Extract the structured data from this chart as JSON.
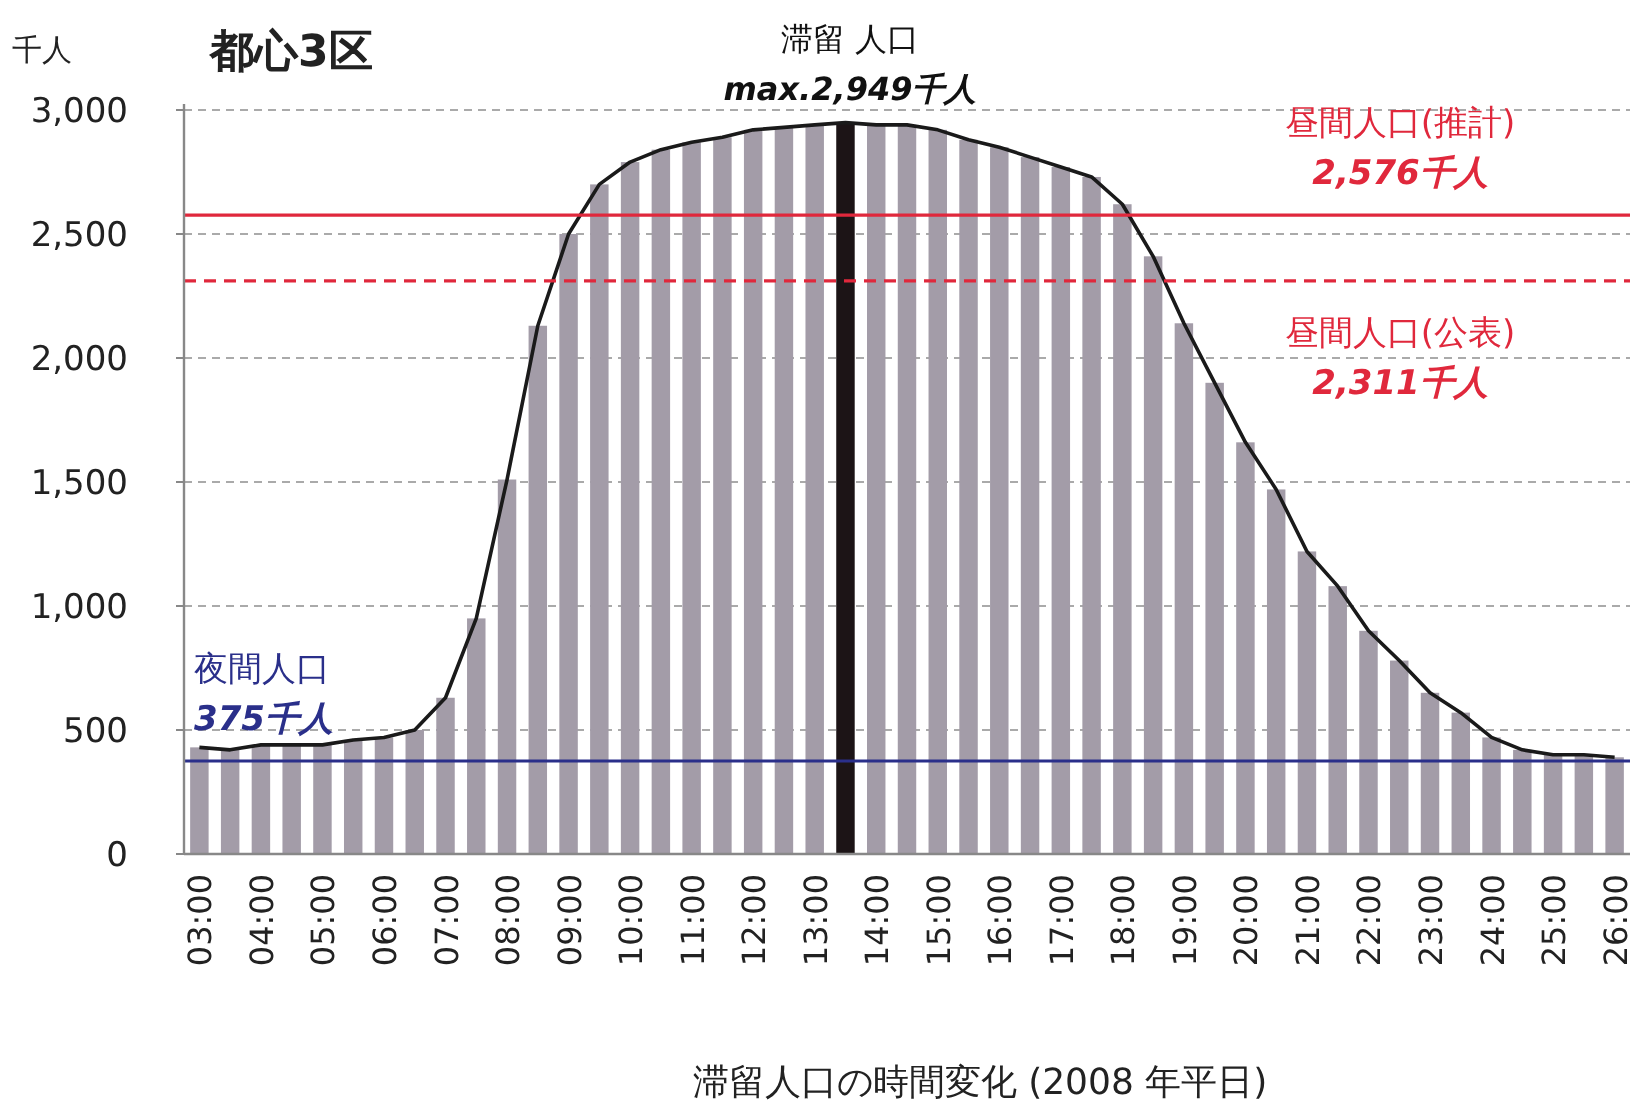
{
  "chart_data": {
    "type": "bar",
    "title": "都心3区",
    "ylabel": "千人",
    "xlabel": "滞留人口の時間変化 (2008 年平日)",
    "categories": [
      "03:00",
      null,
      "04:00",
      null,
      "05:00",
      null,
      "06:00",
      null,
      "07:00",
      null,
      "08:00",
      null,
      "09:00",
      null,
      "10:00",
      null,
      "11:00",
      null,
      "12:00",
      null,
      "13:00",
      null,
      "14:00",
      null,
      "15:00",
      null,
      "16:00",
      null,
      "17:00",
      null,
      "18:00",
      null,
      "19:00",
      null,
      "20:00",
      null,
      "21:00",
      null,
      "22:00",
      null,
      "23:00",
      null,
      "24:00",
      null,
      "25:00",
      null,
      "26:00"
    ],
    "series": [
      {
        "type": "bar",
        "values": [
          430,
          420,
          440,
          440,
          440,
          460,
          470,
          500,
          630,
          950,
          1510,
          2130,
          2500,
          2700,
          2790,
          2840,
          2870,
          2890,
          2920,
          2930,
          2940,
          2949,
          2940,
          2940,
          2920,
          2880,
          2850,
          2810,
          2770,
          2730,
          2620,
          2410,
          2140,
          1900,
          1660,
          1470,
          1220,
          1080,
          900,
          780,
          650,
          570,
          470,
          420,
          400,
          400,
          390
        ],
        "colors": [
          "#a39ca8",
          "#a39ca8",
          "#a39ca8",
          "#a39ca8",
          "#a39ca8",
          "#a39ca8",
          "#a39ca8",
          "#a39ca8",
          "#a39ca8",
          "#a39ca8",
          "#a39ca8",
          "#a39ca8",
          "#a39ca8",
          "#a39ca8",
          "#a39ca8",
          "#a39ca8",
          "#a39ca8",
          "#a39ca8",
          "#a39ca8",
          "#a39ca8",
          "#a39ca8",
          "#1c1416",
          "#a39ca8",
          "#a39ca8",
          "#a39ca8",
          "#a39ca8",
          "#a39ca8",
          "#a39ca8",
          "#a39ca8",
          "#a39ca8",
          "#a39ca8",
          "#a39ca8",
          "#a39ca8",
          "#a39ca8",
          "#a39ca8",
          "#a39ca8",
          "#a39ca8",
          "#a39ca8",
          "#a39ca8",
          "#a39ca8",
          "#a39ca8",
          "#a39ca8",
          "#a39ca8",
          "#a39ca8",
          "#a39ca8",
          "#a39ca8",
          "#a39ca8"
        ]
      },
      {
        "type": "line",
        "color": "#1a1a1a",
        "values": [
          430,
          420,
          440,
          440,
          440,
          460,
          470,
          500,
          630,
          950,
          1510,
          2130,
          2500,
          2700,
          2790,
          2840,
          2870,
          2890,
          2920,
          2930,
          2940,
          2949,
          2940,
          2940,
          2920,
          2880,
          2850,
          2810,
          2770,
          2730,
          2620,
          2410,
          2140,
          1900,
          1660,
          1470,
          1220,
          1080,
          900,
          780,
          650,
          570,
          470,
          420,
          400,
          400,
          390
        ]
      }
    ],
    "ylim": [
      0,
      3000
    ],
    "yticks": [
      0,
      500,
      {
        "value": 1000,
        "label": "1,000"
      },
      {
        "value": 1500,
        "label": "1,500"
      },
      {
        "value": 2000,
        "label": "2,000"
      },
      {
        "value": 2500,
        "label": "2,500"
      },
      {
        "value": 3000,
        "label": "3,000"
      }
    ],
    "grid": "y",
    "ref_lines": [
      {
        "axis": "y",
        "value": 2576,
        "label": "昼間人口(推計)\n2,576千人",
        "color": "#e0283c",
        "line_style": "solid"
      },
      {
        "axis": "y",
        "value": 2311,
        "label": "昼間人口(公表)\n2,311千人",
        "color": "#e0283c",
        "line_style": "dashed"
      },
      {
        "axis": "y",
        "value": 375,
        "label": "夜間人口\n375千人",
        "color": "#2a2f8a",
        "line_style": "solid"
      }
    ],
    "annotations": [
      "滞留 人口",
      "max.2,949千人"
    ]
  }
}
